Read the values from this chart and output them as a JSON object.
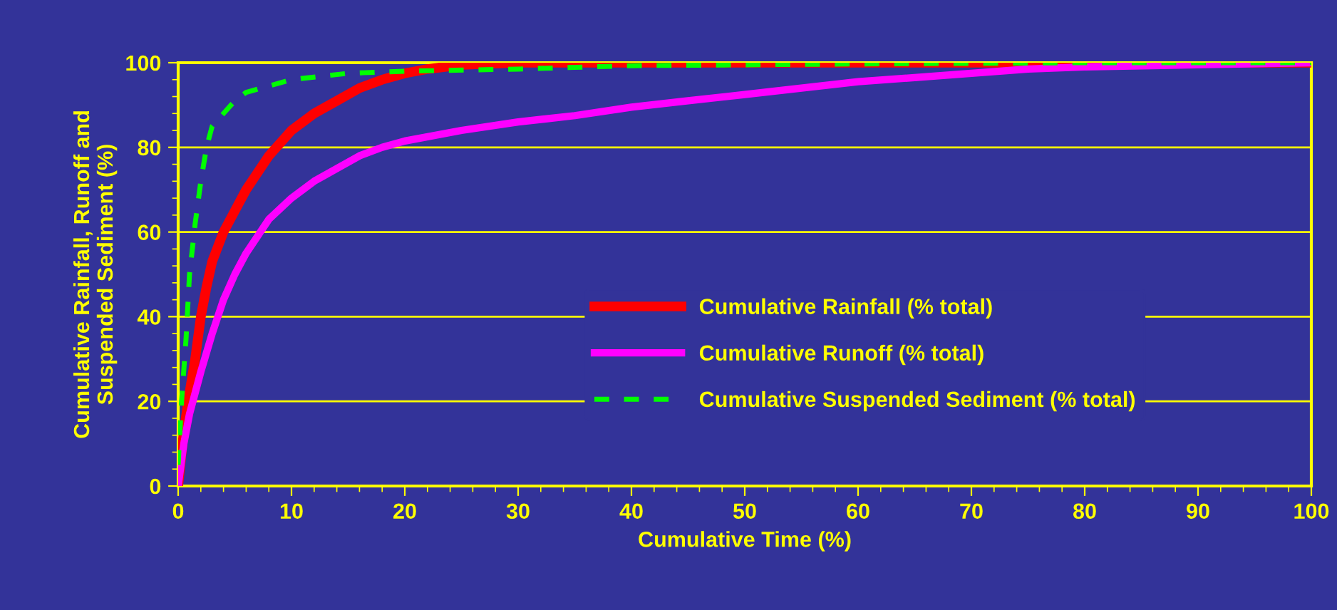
{
  "chart_data": {
    "type": "line",
    "xlabel": "Cumulative Time (%)",
    "ylabel": "Cumulative Rainfall, Runoff and\nSuspended Sediment (%)",
    "xlim": [
      0,
      100
    ],
    "ylim": [
      0,
      100
    ],
    "xticks": [
      0,
      10,
      20,
      30,
      40,
      50,
      60,
      70,
      80,
      90,
      100
    ],
    "yticks": [
      0,
      20,
      40,
      60,
      80,
      100
    ],
    "grid": "y",
    "legend": "right",
    "marker": "none",
    "series": [
      {
        "name": "Cumulative Rainfall (% total)",
        "color": "#ff0000",
        "line_style": "solid",
        "x": [
          0,
          0.5,
          1,
          1.5,
          2,
          2.5,
          3,
          4,
          5,
          6,
          7,
          8,
          10,
          12,
          14,
          16,
          18,
          20,
          22,
          25,
          30,
          100
        ],
        "values": [
          0,
          13,
          22,
          30,
          40,
          47,
          53,
          60,
          65,
          70,
          74,
          78,
          84,
          88,
          91,
          94,
          96,
          97.5,
          98.5,
          99.5,
          100,
          100
        ]
      },
      {
        "name": "Cumulative Runoff (% total)",
        "color": "#ff00ff",
        "line_style": "solid",
        "x": [
          0,
          0.5,
          1,
          2,
          3,
          4,
          5,
          6,
          7,
          8,
          10,
          12,
          14,
          16,
          18,
          20,
          25,
          30,
          35,
          40,
          45,
          50,
          55,
          60,
          65,
          70,
          75,
          80,
          90,
          100
        ],
        "values": [
          0,
          10,
          17,
          27,
          36,
          44,
          50,
          55,
          59,
          63,
          68,
          72,
          75,
          78,
          80,
          81.5,
          84,
          86,
          87.5,
          89.5,
          91,
          92.5,
          94,
          95.5,
          96.5,
          97.5,
          98.5,
          99,
          99.5,
          100
        ]
      },
      {
        "name": "Cumulative Suspended Sediment (% total)",
        "color": "#00ff00",
        "line_style": "dashed",
        "x": [
          0,
          0.3,
          0.7,
          1,
          1.5,
          2,
          2.5,
          3,
          4,
          5,
          6,
          8,
          10,
          15,
          20,
          30,
          40,
          60,
          80,
          100
        ],
        "values": [
          5,
          20,
          35,
          50,
          62,
          72,
          80,
          85,
          88,
          91,
          93,
          94.5,
          96,
          97.5,
          98,
          98.5,
          99.3,
          99.7,
          100,
          100
        ]
      }
    ]
  }
}
